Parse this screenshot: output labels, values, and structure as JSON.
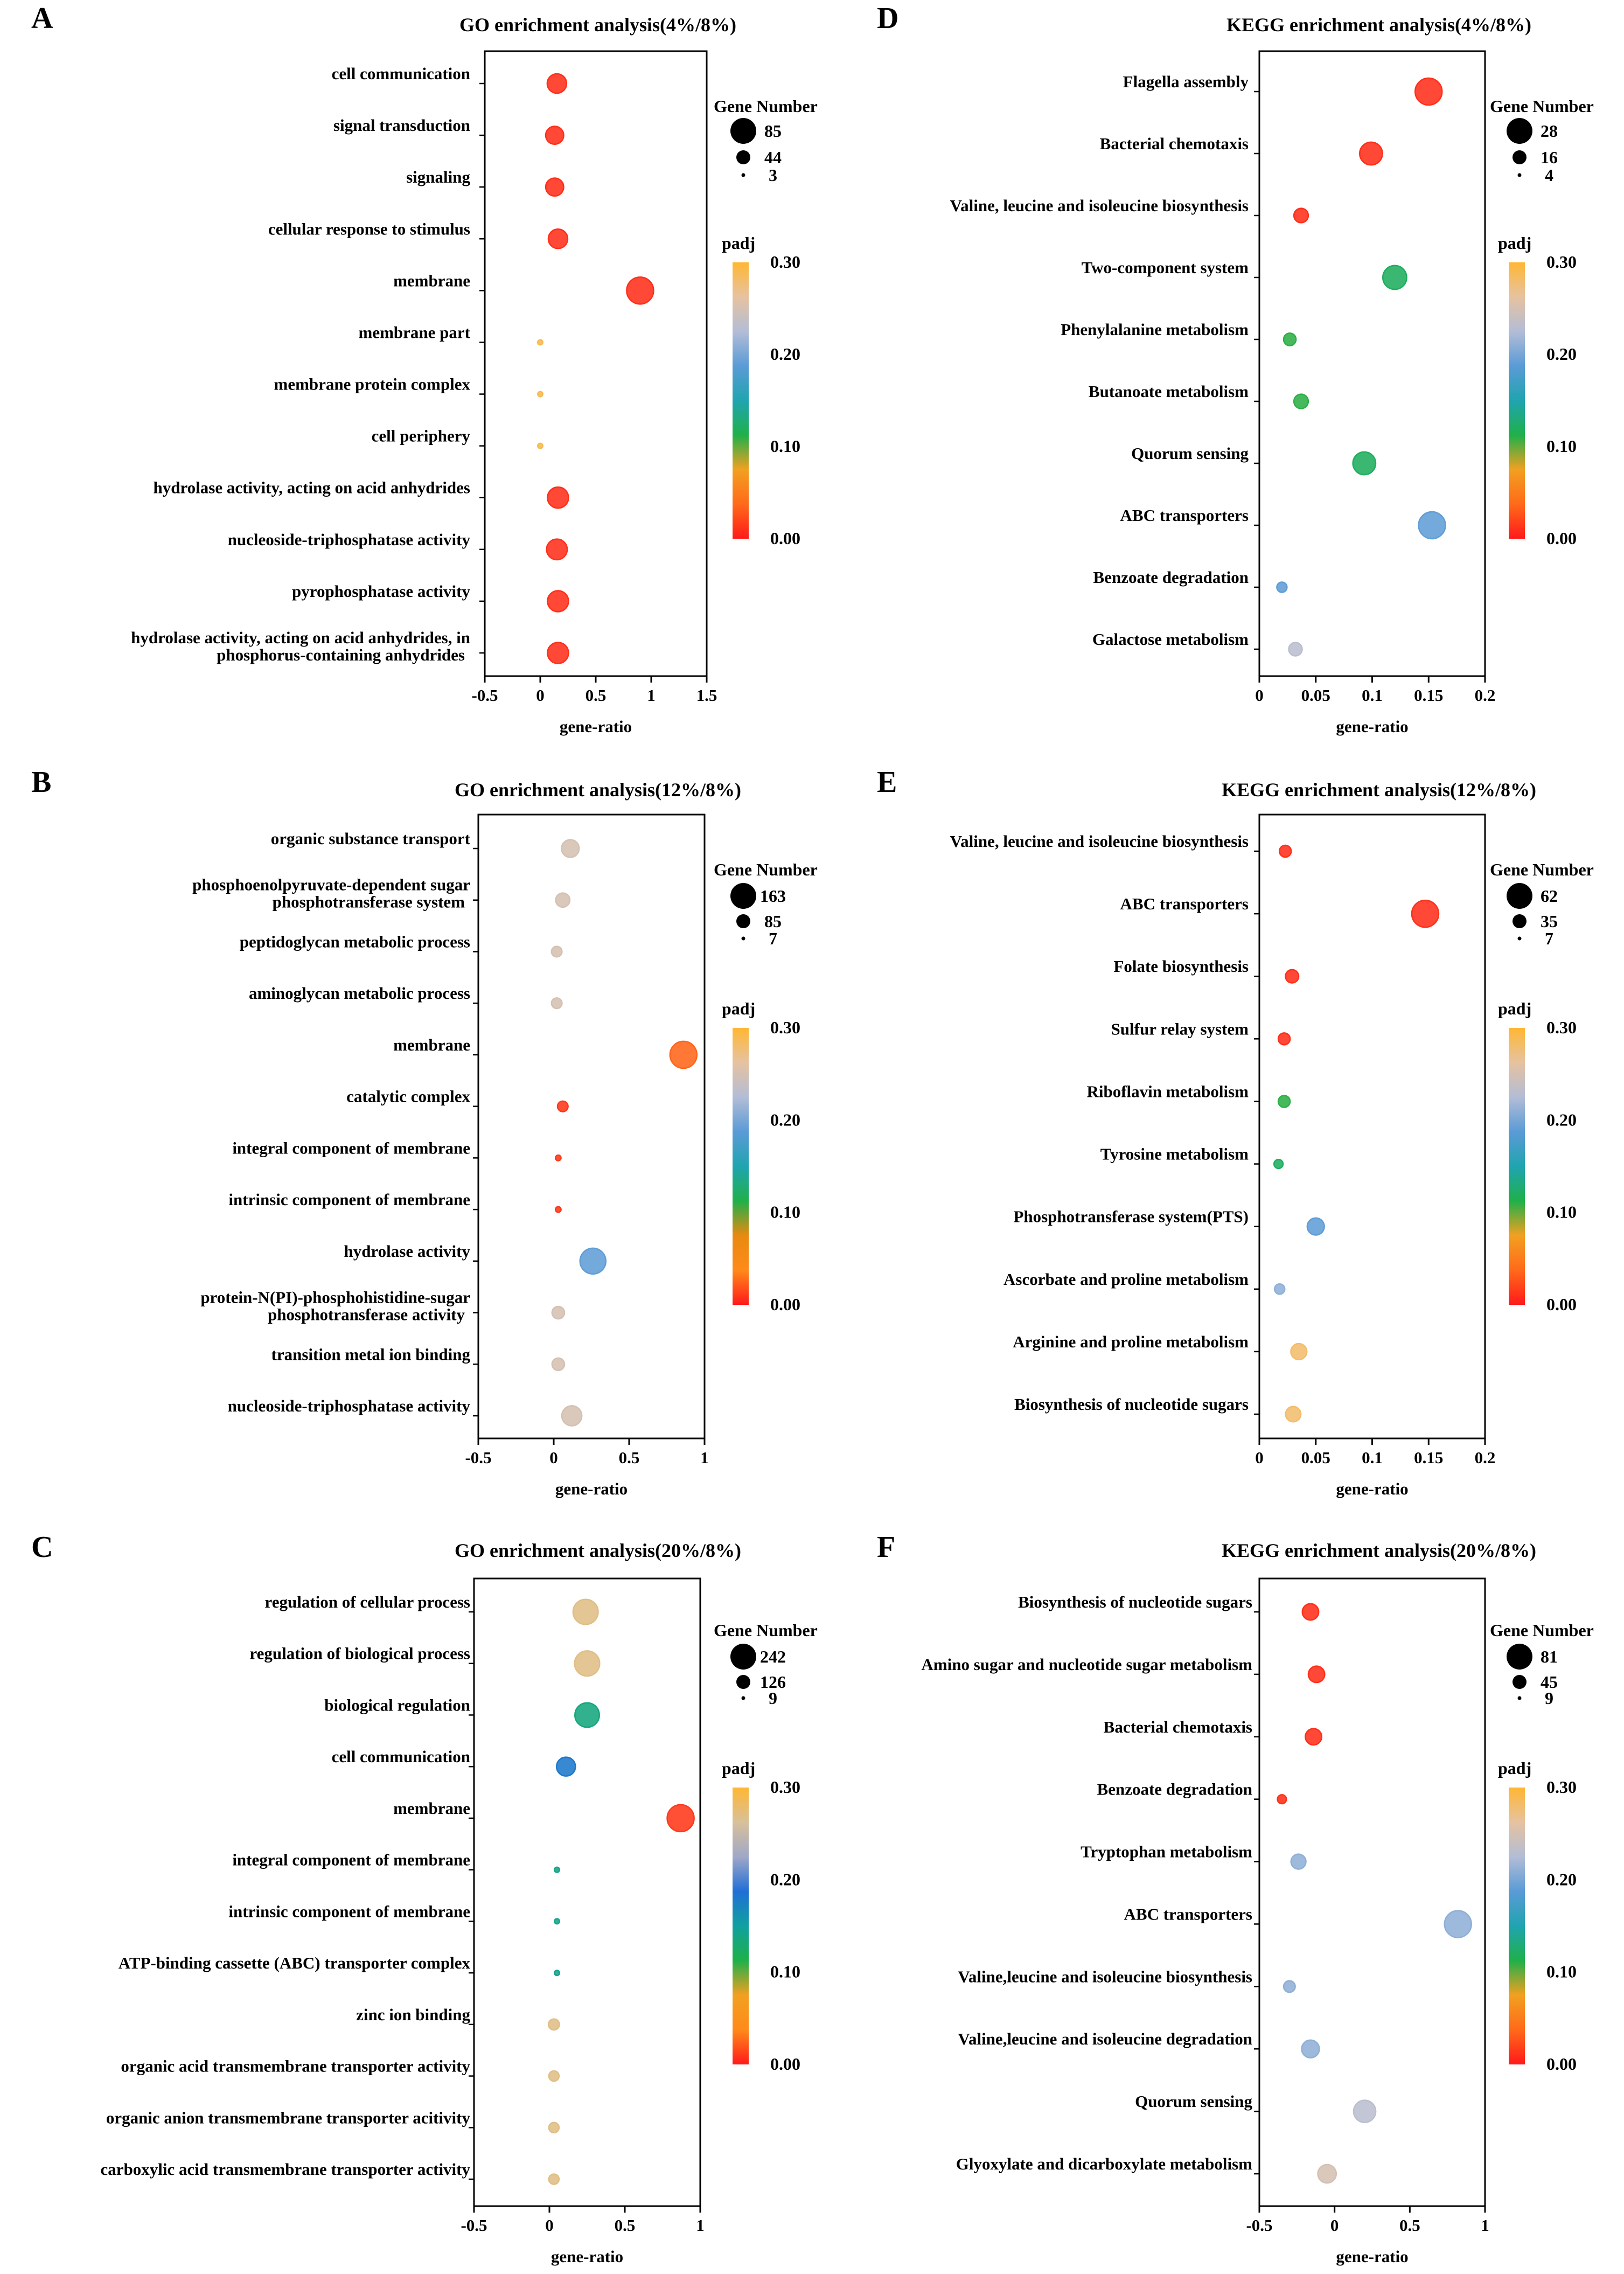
{
  "chart_data": [
    {
      "panel": "A",
      "type": "scatter",
      "title": "GO enrichment analysis(4%/8%)",
      "xlabel": "gene-ratio",
      "xlim": [
        -0.5,
        1.5
      ],
      "xticks": [
        -0.5,
        0,
        0.5,
        1,
        1.5
      ],
      "xtick_labels": [
        "-0.5",
        "0",
        "0.5",
        "1",
        "1.5"
      ],
      "categories": [
        [
          "cell communication"
        ],
        [
          "signal transduction"
        ],
        [
          "signaling"
        ],
        [
          "cellular response to stimulus"
        ],
        [
          "membrane"
        ],
        [
          "membrane part"
        ],
        [
          "membrane protein complex"
        ],
        [
          "cell periphery"
        ],
        [
          "hydrolase activity, acting on acid anhydrides"
        ],
        [
          "nucleoside-triphosphatase activity"
        ],
        [
          "pyrophosphatase activity"
        ],
        [
          "hydrolase activity, acting on acid anhydrides, in",
          "phosphorus-containing anhydrides"
        ]
      ],
      "points": [
        {
          "x": 0.15,
          "size": 44,
          "padj": 0.01
        },
        {
          "x": 0.13,
          "size": 38,
          "padj": 0.01
        },
        {
          "x": 0.13,
          "size": 38,
          "padj": 0.01
        },
        {
          "x": 0.16,
          "size": 44,
          "padj": 0.01
        },
        {
          "x": 0.9,
          "size": 85,
          "padj": 0.01
        },
        {
          "x": 0.0,
          "size": 3,
          "padj": 0.29
        },
        {
          "x": 0.0,
          "size": 3,
          "padj": 0.29
        },
        {
          "x": 0.0,
          "size": 3,
          "padj": 0.29
        },
        {
          "x": 0.16,
          "size": 52,
          "padj": 0.01
        },
        {
          "x": 0.15,
          "size": 50,
          "padj": 0.01
        },
        {
          "x": 0.16,
          "size": 52,
          "padj": 0.01
        },
        {
          "x": 0.16,
          "size": 52,
          "padj": 0.01
        }
      ],
      "size_legend": {
        "title": "Gene Number",
        "values": [
          85,
          44,
          3
        ]
      },
      "color_legend": {
        "title": "padj",
        "labels": [
          "0.30",
          "0.20",
          "0.10",
          "0.00"
        ],
        "min": 0,
        "max": 0.3
      }
    },
    {
      "panel": "D",
      "type": "scatter",
      "title": "KEGG enrichment analysis(4%/8%)",
      "xlabel": "gene-ratio",
      "xlim": [
        0,
        0.2
      ],
      "xticks": [
        0,
        0.05,
        0.1,
        0.15,
        0.2
      ],
      "xtick_labels": [
        "0",
        "0.05",
        "0.1",
        "0.15",
        "0.2"
      ],
      "categories": [
        [
          "Flagella assembly"
        ],
        [
          "Bacterial chemotaxis"
        ],
        [
          "Valine, leucine and isoleucine biosynthesis"
        ],
        [
          "Two-component system"
        ],
        [
          "Phenylalanine metabolism"
        ],
        [
          "Butanoate metabolism"
        ],
        [
          "Quorum sensing"
        ],
        [
          "ABC transporters"
        ],
        [
          "Benzoate degradation"
        ],
        [
          "Galactose metabolism"
        ]
      ],
      "points": [
        {
          "x": 0.15,
          "size": 28,
          "padj": 0.01
        },
        {
          "x": 0.099,
          "size": 20,
          "padj": 0.01
        },
        {
          "x": 0.037,
          "size": 8,
          "padj": 0.01
        },
        {
          "x": 0.12,
          "size": 22,
          "padj": 0.12
        },
        {
          "x": 0.027,
          "size": 6,
          "padj": 0.11
        },
        {
          "x": 0.037,
          "size": 8,
          "padj": 0.11
        },
        {
          "x": 0.093,
          "size": 20,
          "padj": 0.12
        },
        {
          "x": 0.153,
          "size": 28,
          "padj": 0.19
        },
        {
          "x": 0.02,
          "size": 4,
          "padj": 0.19
        },
        {
          "x": 0.032,
          "size": 7,
          "padj": 0.23
        }
      ],
      "size_legend": {
        "title": "Gene Number",
        "values": [
          28,
          16,
          4
        ]
      },
      "color_legend": {
        "title": "padj",
        "labels": [
          "0.30",
          "0.20",
          "0.10",
          "0.00"
        ],
        "min": 0,
        "max": 0.3
      }
    },
    {
      "panel": "B",
      "type": "scatter",
      "title": "GO enrichment analysis(12%/8%)",
      "xlabel": "gene-ratio",
      "xlim": [
        -0.5,
        1
      ],
      "xticks": [
        -0.5,
        0,
        0.5,
        1
      ],
      "xtick_labels": [
        "-0.5",
        "0",
        "0.5",
        "1"
      ],
      "categories": [
        [
          "organic substance transport"
        ],
        [
          "phosphoenolpyruvate-dependent sugar",
          "phosphotransferase system"
        ],
        [
          "peptidoglycan metabolic process"
        ],
        [
          "aminoglycan metabolic process"
        ],
        [
          "membrane"
        ],
        [
          "catalytic complex"
        ],
        [
          "integral component of membrane"
        ],
        [
          "intrinsic component of membrane"
        ],
        [
          "hydrolase activity"
        ],
        [
          "protein-N(PI)-phosphohistidine-sugar",
          "phosphotransferase activity"
        ],
        [
          "transition metal ion binding"
        ],
        [
          "nucleoside-triphosphatase activity"
        ]
      ],
      "points": [
        {
          "x": 0.11,
          "size": 70,
          "padj": 0.25
        },
        {
          "x": 0.06,
          "size": 45,
          "padj": 0.25
        },
        {
          "x": 0.02,
          "size": 25,
          "padj": 0.25
        },
        {
          "x": 0.02,
          "size": 25,
          "padj": 0.25
        },
        {
          "x": 0.86,
          "size": 163,
          "padj": 0.025
        },
        {
          "x": 0.06,
          "size": 25,
          "padj": 0.01
        },
        {
          "x": 0.03,
          "size": 7,
          "padj": 0.01
        },
        {
          "x": 0.03,
          "size": 7,
          "padj": 0.01
        },
        {
          "x": 0.26,
          "size": 150,
          "padj": 0.19
        },
        {
          "x": 0.03,
          "size": 35,
          "padj": 0.25
        },
        {
          "x": 0.03,
          "size": 35,
          "padj": 0.25
        },
        {
          "x": 0.12,
          "size": 90,
          "padj": 0.25
        }
      ],
      "size_legend": {
        "title": "Gene Number",
        "values": [
          163,
          85,
          7
        ]
      },
      "color_legend": {
        "title": "padj",
        "labels": [
          "0.30",
          "0.20",
          "0.10",
          "0.00"
        ],
        "min": 0,
        "max": 0.3
      }
    },
    {
      "panel": "E",
      "type": "scatter",
      "title": "KEGG enrichment analysis(12%/8%)",
      "xlabel": "gene-ratio",
      "xlim": [
        0,
        0.2
      ],
      "xticks": [
        0,
        0.05,
        0.1,
        0.15,
        0.2
      ],
      "xtick_labels": [
        "0",
        "0.05",
        "0.1",
        "0.15",
        "0.2"
      ],
      "categories": [
        [
          "Valine, leucine and isoleucine biosynthesis"
        ],
        [
          "ABC transporters"
        ],
        [
          "Folate biosynthesis"
        ],
        [
          "Sulfur relay system"
        ],
        [
          "Riboflavin metabolism"
        ],
        [
          "Tyrosine metabolism"
        ],
        [
          "Phosphotransferase system(PTS)"
        ],
        [
          "Ascorbate and proline metabolism"
        ],
        [
          "Arginine and proline metabolism"
        ],
        [
          "Biosynthesis of nucleotide sugars"
        ]
      ],
      "points": [
        {
          "x": 0.023,
          "size": 12,
          "padj": 0.01
        },
        {
          "x": 0.147,
          "size": 62,
          "padj": 0.01
        },
        {
          "x": 0.029,
          "size": 15,
          "padj": 0.01
        },
        {
          "x": 0.022,
          "size": 12,
          "padj": 0.01
        },
        {
          "x": 0.022,
          "size": 12,
          "padj": 0.11
        },
        {
          "x": 0.017,
          "size": 7,
          "padj": 0.12
        },
        {
          "x": 0.05,
          "size": 25,
          "padj": 0.19
        },
        {
          "x": 0.018,
          "size": 9,
          "padj": 0.21
        },
        {
          "x": 0.035,
          "size": 22,
          "padj": 0.28
        },
        {
          "x": 0.03,
          "size": 20,
          "padj": 0.28
        }
      ],
      "size_legend": {
        "title": "Gene Number",
        "values": [
          62,
          35,
          7
        ]
      },
      "color_legend": {
        "title": "padj",
        "labels": [
          "0.30",
          "0.20",
          "0.10",
          "0.00"
        ],
        "min": 0,
        "max": 0.3
      }
    },
    {
      "panel": "C",
      "type": "scatter",
      "title": "GO enrichment analysis(20%/8%)",
      "xlabel": "gene-ratio",
      "xlim": [
        -0.5,
        1
      ],
      "xticks": [
        -0.5,
        0,
        0.5,
        1
      ],
      "xtick_labels": [
        "-0.5",
        "0",
        "0.5",
        "1"
      ],
      "categories": [
        [
          "regulation of cellular process"
        ],
        [
          "regulation of biological process"
        ],
        [
          "biological regulation"
        ],
        [
          "cell communication"
        ],
        [
          "membrane"
        ],
        [
          "integral component of membrane"
        ],
        [
          "intrinsic component of membrane"
        ],
        [
          "ATP-binding cassette (ABC) transporter complex"
        ],
        [
          "zinc ion binding"
        ],
        [
          "organic acid transmembrane transporter activity"
        ],
        [
          "organic anion transmembrane transporter acitivity"
        ],
        [
          "carboxylic acid transmembrane transporter activity"
        ]
      ],
      "points": [
        {
          "x": 0.24,
          "size": 210,
          "padj": 0.27
        },
        {
          "x": 0.25,
          "size": 210,
          "padj": 0.27
        },
        {
          "x": 0.25,
          "size": 200,
          "padj": 0.135
        },
        {
          "x": 0.11,
          "size": 120,
          "padj": 0.18
        },
        {
          "x": 0.87,
          "size": 242,
          "padj": 0.01
        },
        {
          "x": 0.05,
          "size": 9,
          "padj": 0.14
        },
        {
          "x": 0.05,
          "size": 9,
          "padj": 0.14
        },
        {
          "x": 0.05,
          "size": 9,
          "padj": 0.14
        },
        {
          "x": 0.03,
          "size": 40,
          "padj": 0.27
        },
        {
          "x": 0.03,
          "size": 35,
          "padj": 0.27
        },
        {
          "x": 0.03,
          "size": 35,
          "padj": 0.27
        },
        {
          "x": 0.03,
          "size": 35,
          "padj": 0.27
        }
      ],
      "size_legend": {
        "title": "Gene Number",
        "values": [
          242,
          126,
          9
        ]
      },
      "color_legend": {
        "title": "padj",
        "labels": [
          "0.30",
          "0.20",
          "0.10",
          "0.00"
        ],
        "min": 0,
        "max": 0.3
      }
    },
    {
      "panel": "F",
      "type": "scatter",
      "title": "KEGG enrichment analysis(20%/8%)",
      "xlabel": "gene-ratio",
      "xlim": [
        -0.5,
        1
      ],
      "xticks": [
        -0.5,
        0,
        0.5,
        1
      ],
      "xtick_labels": [
        "-0.5",
        "0",
        "0.5",
        "1"
      ],
      "categories": [
        [
          "Biosynthesis of nucleotide sugars"
        ],
        [
          "Amino sugar and nucleotide sugar metabolism"
        ],
        [
          "Bacterial chemotaxis"
        ],
        [
          "Benzoate degradation"
        ],
        [
          "Tryptophan metabolism"
        ],
        [
          "ABC transporters"
        ],
        [
          "Valine,leucine and isoleucine biosynthesis"
        ],
        [
          "Valine,leucine and isoleucine degradation"
        ],
        [
          "Quorum sensing"
        ],
        [
          "Glyoxylate and dicarboxylate metabolism"
        ]
      ],
      "points": [
        {
          "x": -0.16,
          "size": 30,
          "padj": 0.01
        },
        {
          "x": -0.12,
          "size": 30,
          "padj": 0.01
        },
        {
          "x": -0.14,
          "size": 30,
          "padj": 0.01
        },
        {
          "x": -0.35,
          "size": 9,
          "padj": 0.01
        },
        {
          "x": -0.24,
          "size": 25,
          "padj": 0.21
        },
        {
          "x": 0.82,
          "size": 81,
          "padj": 0.21
        },
        {
          "x": -0.3,
          "size": 15,
          "padj": 0.21
        },
        {
          "x": -0.16,
          "size": 35,
          "padj": 0.21
        },
        {
          "x": 0.2,
          "size": 55,
          "padj": 0.23
        },
        {
          "x": -0.05,
          "size": 38,
          "padj": 0.25
        }
      ],
      "size_legend": {
        "title": "Gene Number",
        "values": [
          81,
          45,
          9
        ]
      },
      "color_legend": {
        "title": "padj",
        "labels": [
          "0.30",
          "0.20",
          "0.10",
          "0.00"
        ],
        "min": 0,
        "max": 0.3
      }
    }
  ],
  "colors": {
    "panels_AD": [
      "#ff1a1a",
      "#ff6a1a",
      "#f2a020",
      "#1fb04a",
      "#20a4b0",
      "#5a9bd6",
      "#b3bdd6",
      "#e6c2a0",
      "#ffb733"
    ],
    "panel_B": [
      "#ff1a1a",
      "#ff8a1a",
      "#e88a10",
      "#1fb04a",
      "#20a4b0",
      "#5a9bd6",
      "#b3bdd6",
      "#e6c2a0",
      "#ffb733"
    ],
    "panel_C": [
      "#ff1a1a",
      "#ff8a1a",
      "#f2a020",
      "#1fb04a",
      "#10a0a0",
      "#1f6fd6",
      "#a0a8c8",
      "#d8c09a",
      "#ffb733"
    ]
  }
}
